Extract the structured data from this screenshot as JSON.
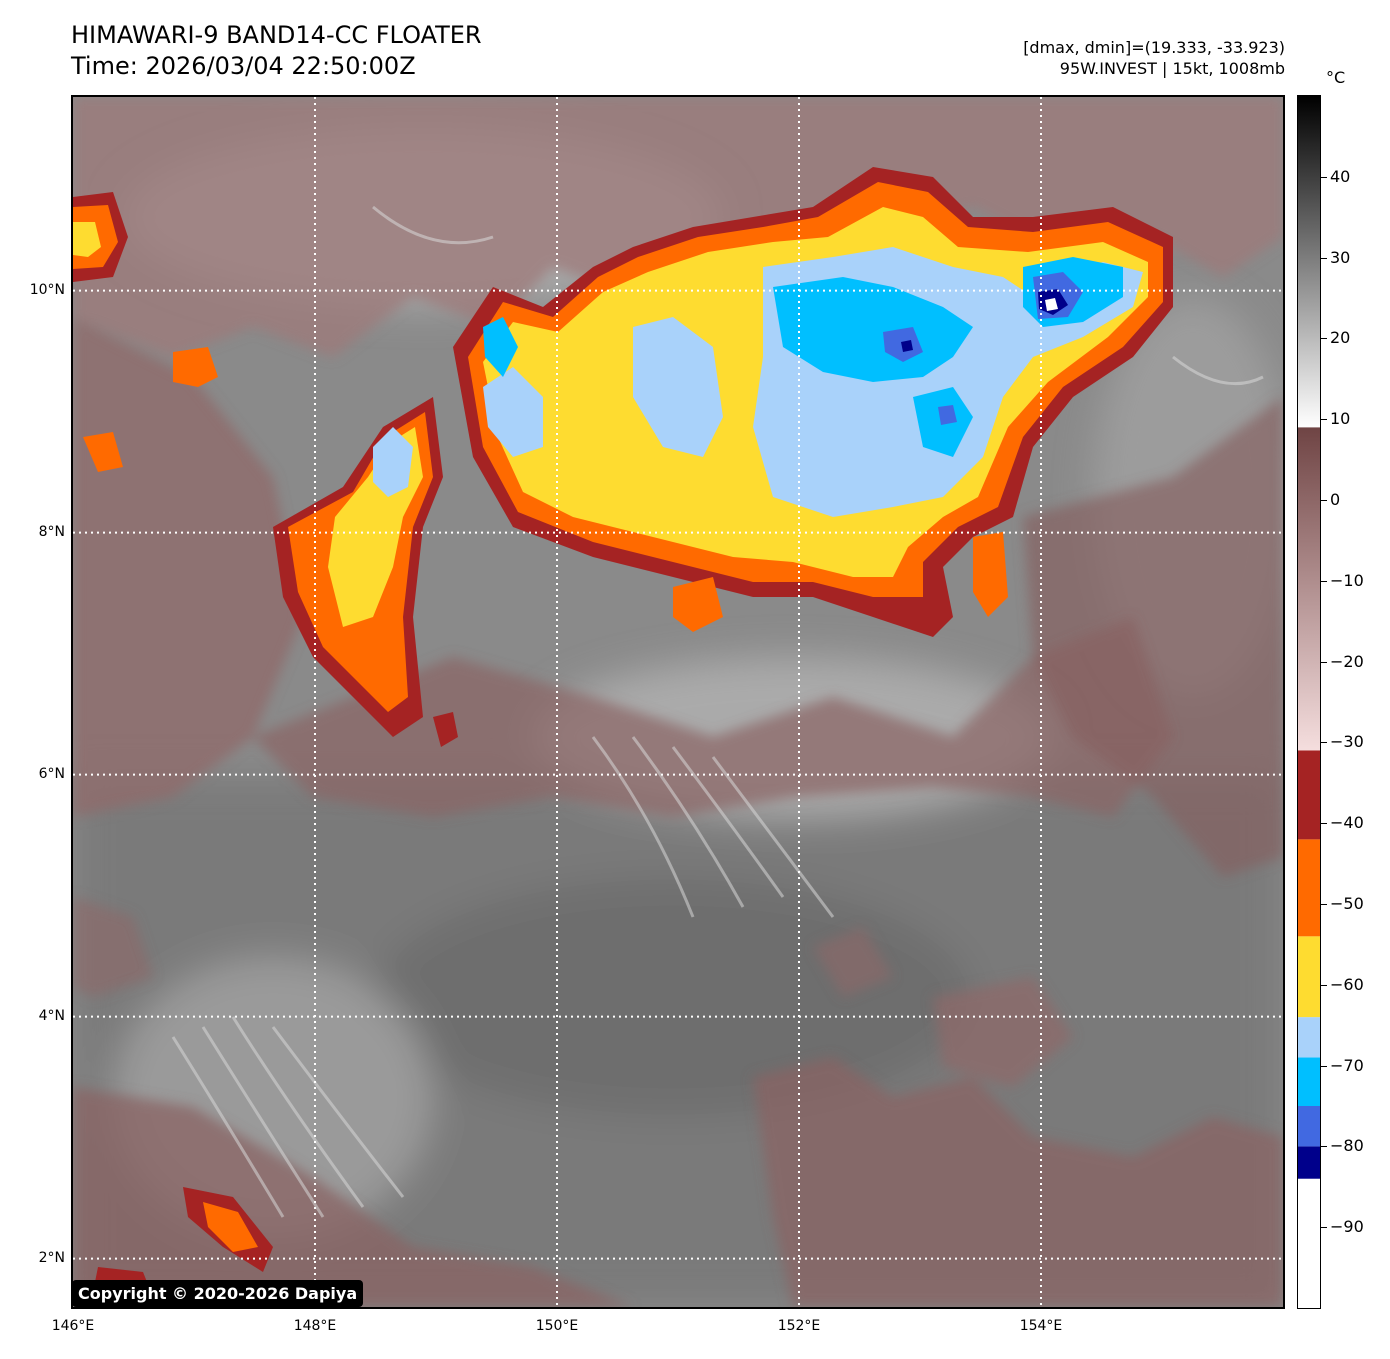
{
  "header": {
    "title_line1": "HIMAWARI-9 BAND14-CC FLOATER",
    "title_line2": "Time: 2026/03/04 22:50:00Z",
    "dmax_dmin": "[dmax, dmin]=(19.333, -33.923)",
    "storm_info": "95W.INVEST | 15kt, 1008mb"
  },
  "map": {
    "lat_labels": [
      "10°N",
      "8°N",
      "6°N",
      "4°N",
      "2°N"
    ],
    "lon_labels": [
      "146°E",
      "148°E",
      "150°E",
      "152°E",
      "154°E"
    ],
    "lat_values": [
      10,
      8,
      6,
      4,
      2
    ],
    "lon_values": [
      146,
      148,
      150,
      152,
      154
    ],
    "lat_range": [
      1.6,
      11.6
    ],
    "lon_range": [
      146,
      156
    ],
    "copyright": "Copyright © 2020-2026 Dapiya"
  },
  "colorbar": {
    "unit": "°C",
    "range": [
      -100,
      50
    ],
    "tick_values": [
      40,
      30,
      20,
      10,
      0,
      -10,
      -20,
      -30,
      -40,
      -50,
      -60,
      -70,
      -80,
      -90
    ],
    "tick_labels": [
      "40",
      "30",
      "20",
      "10",
      "0",
      "−10",
      "−20",
      "−30",
      "−40",
      "−50",
      "−60",
      "−70",
      "−80",
      "−90"
    ],
    "segments": [
      {
        "from": -100,
        "to": -84,
        "color": "#ffffff"
      },
      {
        "from": -84,
        "to": -80,
        "color": "#00008b"
      },
      {
        "from": -80,
        "to": -75,
        "color": "#4169e1"
      },
      {
        "from": -75,
        "to": -69,
        "color": "#00bfff"
      },
      {
        "from": -69,
        "to": -64,
        "color": "#a9d2fa"
      },
      {
        "from": -64,
        "to": -54,
        "color": "#fedc30"
      },
      {
        "from": -54,
        "to": -42,
        "color": "#ff6a00"
      },
      {
        "from": -42,
        "to": -31,
        "color": "#a52323"
      }
    ],
    "gradients": [
      {
        "from": -31,
        "to": 9,
        "start": "#f5dede",
        "end": "#6f4444"
      },
      {
        "from": 9,
        "to": 50,
        "start": "#ffffff",
        "end": "#000000"
      }
    ]
  }
}
